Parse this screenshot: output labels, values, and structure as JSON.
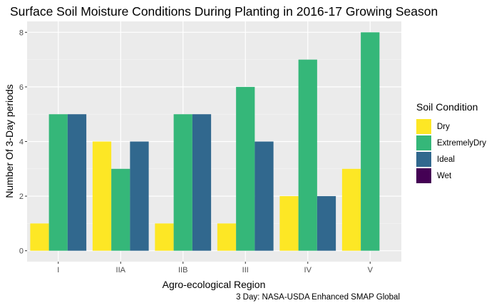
{
  "chart_data": {
    "type": "bar",
    "title": "Surface Soil Moisture Conditions During Planting in 2016-17 Growing Season",
    "xlabel": "Agro-ecological Region",
    "ylabel": "Number Of 3-Day periods",
    "caption": "3 Day: NASA-USDA Enhanced SMAP Global",
    "categories": [
      "I",
      "IIA",
      "IIB",
      "III",
      "IV",
      "V"
    ],
    "ylim": [
      -0.4,
      8.4
    ],
    "yticks": [
      0,
      2,
      4,
      6,
      8
    ],
    "legend_title": "Soil Condition",
    "legend_position": "right",
    "grid": true,
    "series": [
      {
        "name": "Dry",
        "color": "#FDE725",
        "values": [
          1,
          4,
          1,
          1,
          2,
          3
        ]
      },
      {
        "name": "ExtremelyDry",
        "color": "#35B779",
        "values": [
          5,
          3,
          5,
          6,
          7,
          8
        ]
      },
      {
        "name": "Ideal",
        "color": "#31688E",
        "values": [
          5,
          4,
          5,
          4,
          2,
          null
        ]
      },
      {
        "name": "Wet",
        "color": "#440154",
        "values": [
          null,
          null,
          null,
          null,
          null,
          null
        ]
      }
    ]
  }
}
